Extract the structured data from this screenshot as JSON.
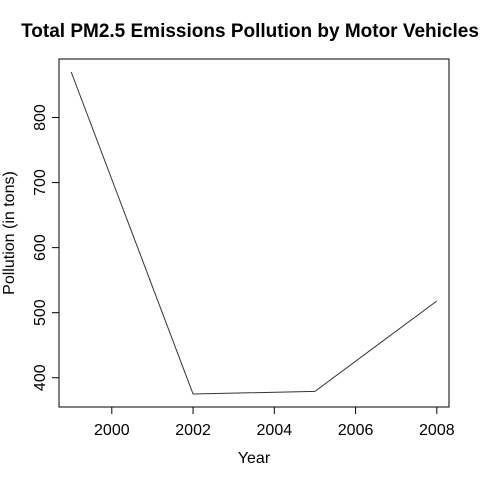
{
  "chart_data": {
    "type": "line",
    "title": "Total PM2.5 Emissions Pollution by Motor Vehicles",
    "xlabel": "Year",
    "ylabel": "Pollution (in tons)",
    "x": [
      1999,
      2002,
      2005,
      2008
    ],
    "series": [
      {
        "values": [
          870,
          375,
          379,
          518
        ]
      }
    ],
    "xticks": [
      2000,
      2002,
      2004,
      2006,
      2008
    ],
    "yticks": [
      400,
      500,
      600,
      700,
      800
    ],
    "xlim": [
      1998.7,
      2008.3
    ],
    "ylim": [
      355,
      890
    ],
    "grid": false,
    "colors": {
      "line": "#333333",
      "axis": "#000000"
    }
  }
}
